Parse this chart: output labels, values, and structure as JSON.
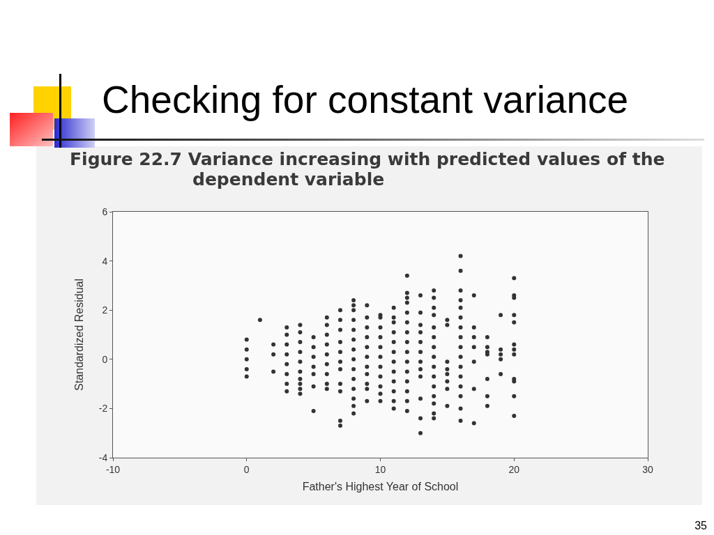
{
  "chart_data": {
    "type": "scatter",
    "title": "Checking for constant variance",
    "subtitle": "Figure 22.7 Variance increasing with predicted values of the dependent variable",
    "xlabel": "Father's Highest Year of School",
    "ylabel": "Standardized Residual",
    "annotations": [
      "35"
    ],
    "x": [
      0,
      0,
      0,
      0,
      0,
      1,
      2,
      2,
      2,
      3,
      3,
      3,
      3,
      3,
      3,
      3,
      3,
      4,
      4,
      4,
      4,
      4,
      4,
      4,
      4,
      4,
      4,
      5,
      5,
      5,
      5,
      5,
      5,
      5,
      6,
      6,
      6,
      6,
      6,
      6,
      6,
      6,
      6,
      7,
      7,
      7,
      7,
      7,
      7,
      7,
      7,
      7,
      7,
      7,
      8,
      8,
      8,
      8,
      8,
      8,
      8,
      8,
      8,
      8,
      8,
      8,
      8,
      8,
      9,
      9,
      9,
      9,
      9,
      9,
      9,
      9,
      9,
      9,
      9,
      10,
      10,
      10,
      10,
      10,
      10,
      10,
      10,
      10,
      10,
      10,
      11,
      11,
      11,
      11,
      11,
      11,
      11,
      11,
      11,
      11,
      11,
      11,
      12,
      12,
      12,
      12,
      12,
      12,
      12,
      12,
      12,
      12,
      12,
      12,
      12,
      12,
      12,
      13,
      13,
      13,
      13,
      13,
      13,
      13,
      13,
      13,
      13,
      13,
      13,
      14,
      14,
      14,
      14,
      14,
      14,
      14,
      14,
      14,
      14,
      14,
      14,
      14,
      14,
      14,
      15,
      15,
      15,
      15,
      15,
      15,
      15,
      15,
      16,
      16,
      16,
      16,
      16,
      16,
      16,
      16,
      16,
      16,
      16,
      16,
      16,
      16,
      16,
      16,
      17,
      17,
      17,
      17,
      17,
      17,
      17,
      18,
      18,
      18,
      18,
      18,
      18,
      18,
      19,
      19,
      19,
      19,
      19,
      20,
      20,
      20,
      20,
      20,
      20,
      20,
      20,
      20,
      20,
      20,
      20
    ],
    "values": [
      0.8,
      0.4,
      0,
      -0.4,
      -0.7,
      1.6,
      0.6,
      0.2,
      -0.5,
      1.3,
      1.0,
      0.6,
      0.2,
      -0.2,
      -0.6,
      -1.0,
      -1.3,
      1.4,
      1.1,
      0.7,
      0.3,
      -0.1,
      -0.5,
      -0.8,
      -1.0,
      -1.2,
      -1.4,
      0.9,
      0.5,
      0.1,
      -0.3,
      -0.6,
      -1.1,
      -2.1,
      1.7,
      1.4,
      1.0,
      0.6,
      0.2,
      -0.2,
      -0.6,
      -1.0,
      -1.2,
      2.0,
      1.6,
      1.2,
      0.7,
      0.3,
      -0.1,
      -0.4,
      -1.0,
      -1.3,
      -2.5,
      -2.7,
      2.4,
      2.2,
      2.0,
      1.6,
      1.2,
      0.8,
      0.4,
      0,
      -0.4,
      -0.8,
      -1.2,
      -1.6,
      -1.9,
      -2.2,
      2.2,
      1.7,
      1.3,
      0.9,
      0.5,
      0.1,
      -0.3,
      -0.6,
      -1.0,
      -1.2,
      -1.7,
      1.8,
      1.7,
      1.3,
      0.9,
      0.5,
      0.1,
      -0.3,
      -0.7,
      -1.1,
      -1.4,
      -1.7,
      2.1,
      1.7,
      1.5,
      1.1,
      0.7,
      0.3,
      -0.1,
      -0.5,
      -0.9,
      -1.3,
      -1.7,
      -2.0,
      3.4,
      2.7,
      2.5,
      2.3,
      1.9,
      1.5,
      1.1,
      0.7,
      0.3,
      -0.1,
      -0.5,
      -0.9,
      -1.3,
      -1.7,
      -2.1,
      2.6,
      1.9,
      1.4,
      1.1,
      0.7,
      0.3,
      -0.1,
      -0.4,
      -0.7,
      -1.6,
      -2.4,
      -3.0,
      2.8,
      2.5,
      2.1,
      1.8,
      1.3,
      0.9,
      0.5,
      0.1,
      -0.3,
      -0.7,
      -1.1,
      -1.5,
      -1.8,
      -2.2,
      -2.4,
      1.6,
      1.4,
      -0.1,
      -0.4,
      -0.6,
      -0.9,
      -1.2,
      -1.9,
      4.2,
      3.6,
      2.8,
      2.4,
      2.1,
      1.7,
      1.3,
      0.9,
      0.5,
      0.1,
      -0.3,
      -0.7,
      -1.1,
      -1.5,
      -2.0,
      -2.5,
      2.6,
      1.3,
      0.9,
      0.5,
      -0.1,
      -1.2,
      -2.6,
      0.9,
      0.5,
      0.3,
      0.2,
      -0.8,
      -1.5,
      -1.9,
      1.8,
      0.4,
      0.2,
      0,
      -0.6,
      3.3,
      2.6,
      2.5,
      1.8,
      1.5,
      0.6,
      0.4,
      0.2,
      -0.8,
      -0.9,
      -1.5,
      -2.3
    ],
    "color": "#333333",
    "marker": "circle",
    "xlim": [
      -10,
      30
    ],
    "xticks": [
      -10,
      0,
      10,
      20,
      30
    ],
    "ylim": [
      -4,
      6
    ],
    "yticks": [
      -4,
      -2,
      0,
      2,
      4,
      6
    ]
  }
}
